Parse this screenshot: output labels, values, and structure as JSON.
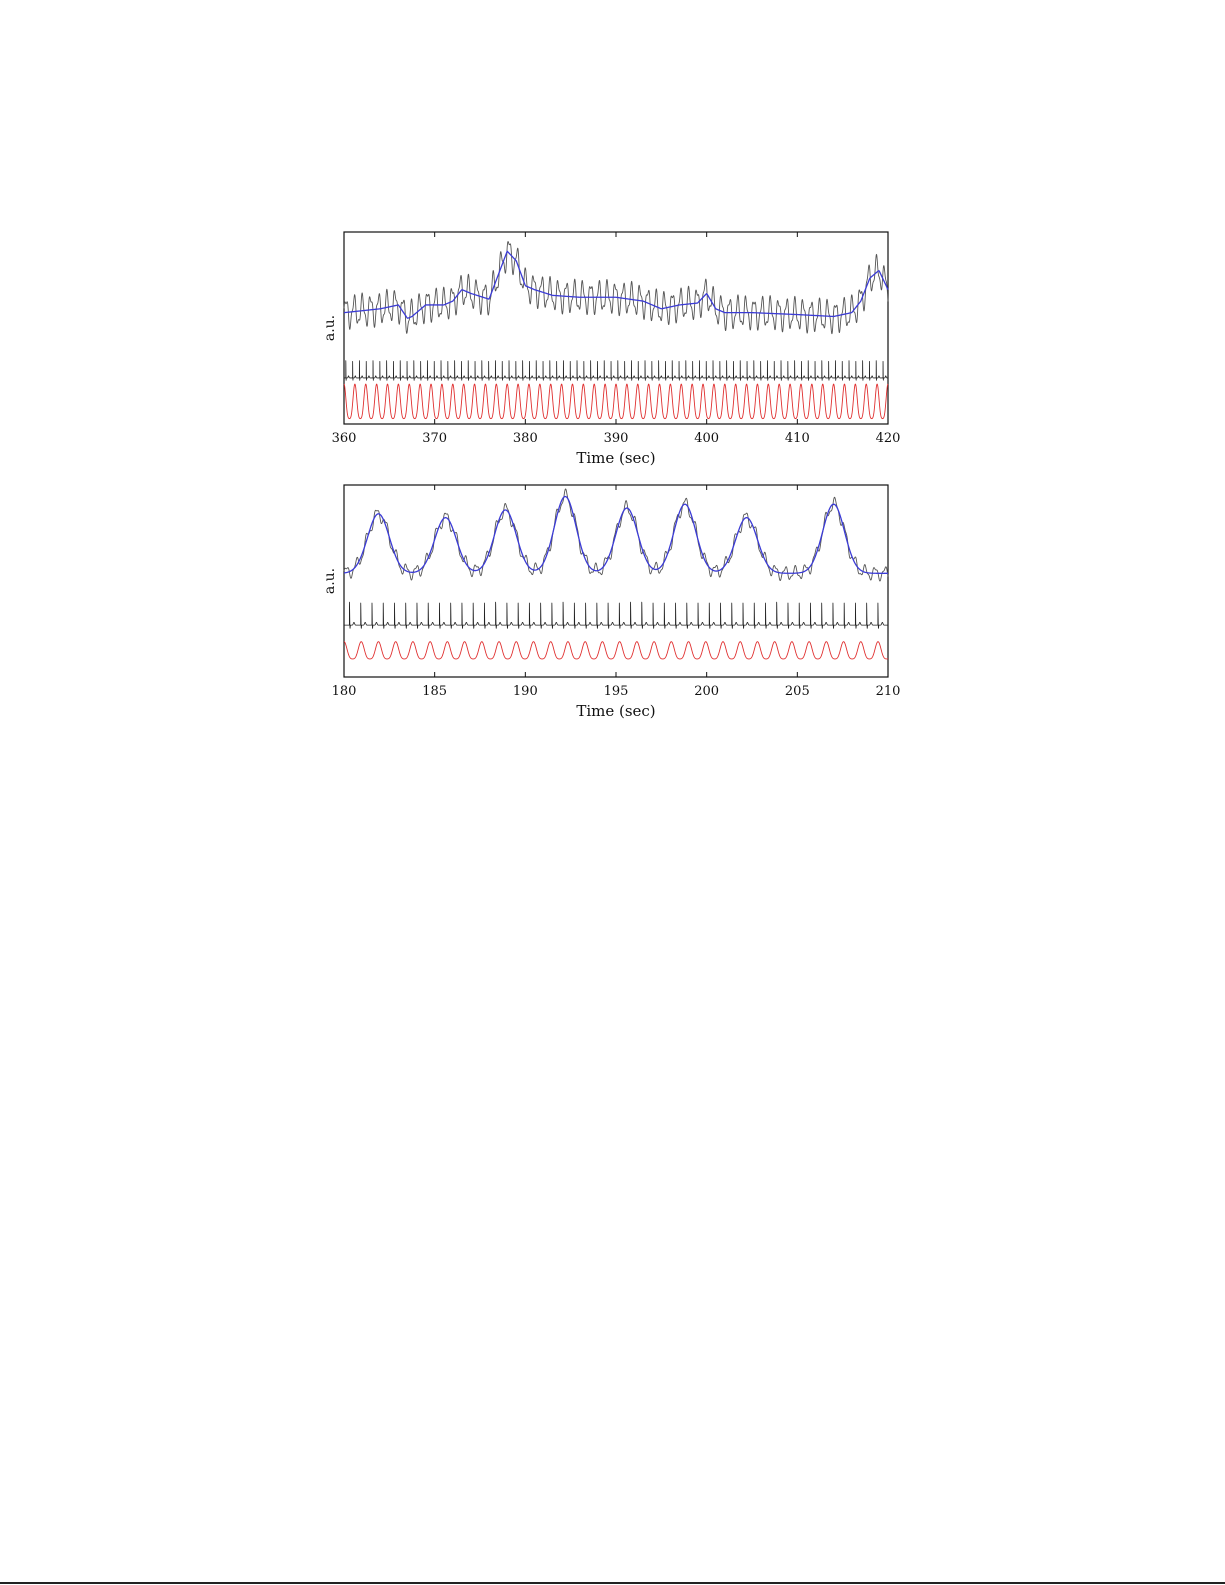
{
  "colors": {
    "raw": "#555555",
    "smooth": "#3b3bd6",
    "ecg": "#222222",
    "resp": "#e03030"
  },
  "chart_data": [
    {
      "type": "line",
      "title": "",
      "xlabel": "Time (sec)",
      "ylabel": "a.u.",
      "xlim": [
        360,
        420
      ],
      "xticks": [
        "360",
        "370",
        "380",
        "390",
        "400",
        "410",
        "420"
      ],
      "grid": false,
      "legend": "none",
      "series": [
        {
          "key": "smooth",
          "role": "smoothed signal (blue)",
          "x": [
            360,
            362,
            364,
            366,
            367,
            367.5,
            369,
            371,
            372,
            373,
            374,
            376,
            378,
            379,
            380,
            381,
            383,
            386,
            390,
            393,
            395,
            397,
            399,
            400,
            401,
            402,
            405,
            410,
            414,
            416,
            417,
            418,
            419,
            420
          ],
          "y": [
            0.58,
            0.59,
            0.6,
            0.62,
            0.55,
            0.56,
            0.62,
            0.62,
            0.64,
            0.7,
            0.68,
            0.65,
            0.9,
            0.85,
            0.72,
            0.7,
            0.67,
            0.66,
            0.66,
            0.64,
            0.6,
            0.62,
            0.63,
            0.68,
            0.6,
            0.58,
            0.58,
            0.57,
            0.56,
            0.58,
            0.64,
            0.76,
            0.8,
            0.7
          ]
        },
        {
          "key": "raw",
          "role": "raw signal (thin gray)",
          "x": [
            360,
            362,
            364,
            366,
            367,
            367.5,
            369,
            371,
            372,
            373,
            374,
            376,
            378,
            379,
            380,
            381,
            383,
            386,
            390,
            393,
            395,
            397,
            399,
            400,
            401,
            402,
            405,
            410,
            414,
            416,
            417,
            418,
            419,
            420
          ],
          "y": [
            0.58,
            0.59,
            0.6,
            0.62,
            0.55,
            0.56,
            0.62,
            0.62,
            0.64,
            0.7,
            0.68,
            0.65,
            0.9,
            0.85,
            0.72,
            0.7,
            0.67,
            0.66,
            0.66,
            0.64,
            0.6,
            0.62,
            0.63,
            0.68,
            0.6,
            0.58,
            0.58,
            0.57,
            0.56,
            0.58,
            0.64,
            0.76,
            0.8,
            0.7
          ],
          "oscillation_period_s": 0.9,
          "oscillation_amplitude": 0.07
        },
        {
          "key": "ecg",
          "role": "ECG spike train (black)",
          "baseline": 0.24,
          "spike_height": 0.09,
          "beat_interval_s": 0.75,
          "start": 360.2
        },
        {
          "key": "resp",
          "role": "oscillating trace (red)",
          "center": 0.1,
          "amplitude": 0.09,
          "period_s": 1.2
        }
      ]
    },
    {
      "type": "line",
      "title": "",
      "xlabel": "Time (sec)",
      "ylabel": "a.u.",
      "xlim": [
        180,
        210
      ],
      "xticks": [
        "180",
        "185",
        "190",
        "195",
        "200",
        "205",
        "210"
      ],
      "grid": false,
      "legend": "none",
      "series": [
        {
          "key": "smooth",
          "role": "smoothed signal (blue)",
          "wave_centers": [
            181.9,
            185.6,
            188.9,
            192.2,
            195.6,
            198.8,
            202.2,
            207.0
          ],
          "wave_peaks": [
            0.85,
            0.83,
            0.87,
            0.94,
            0.88,
            0.9,
            0.83,
            0.9
          ],
          "baseline": 0.54,
          "width_s": 0.85
        },
        {
          "key": "raw",
          "role": "raw signal (thin gray)",
          "oscillation_period_s": 0.55,
          "oscillation_amplitude": 0.03
        },
        {
          "key": "ecg",
          "role": "ECG spike train (black)",
          "baseline": 0.27,
          "spike_height": 0.12,
          "beat_interval_s": 0.62,
          "start": 180.3
        },
        {
          "key": "resp",
          "role": "oscillating trace (red)",
          "center": 0.13,
          "amplitude": 0.045,
          "period_s": 0.95
        }
      ]
    }
  ]
}
